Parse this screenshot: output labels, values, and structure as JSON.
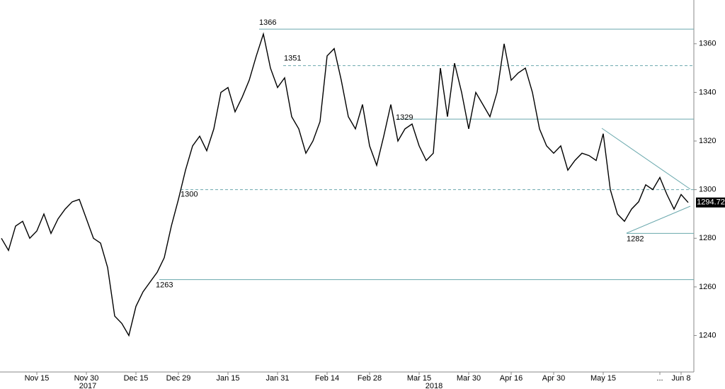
{
  "chart_data": {
    "type": "line",
    "categories": [
      null,
      null,
      null,
      null,
      null,
      "Nov 15",
      null,
      null,
      null,
      null,
      null,
      null,
      "Nov 30",
      null,
      null,
      null,
      null,
      null,
      null,
      "Dec 15",
      null,
      null,
      null,
      null,
      null,
      "Dec 29",
      null,
      null,
      null,
      null,
      null,
      null,
      "Jan 15",
      null,
      null,
      null,
      null,
      null,
      null,
      "Jan 31",
      null,
      null,
      null,
      null,
      null,
      null,
      "Feb 14",
      null,
      null,
      null,
      null,
      null,
      "Feb 28",
      null,
      null,
      null,
      null,
      null,
      null,
      "Mar 15",
      null,
      null,
      null,
      null,
      null,
      null,
      "Mar 30",
      null,
      null,
      null,
      null,
      null,
      "Apr 16",
      null,
      null,
      null,
      null,
      null,
      "Apr 30",
      null,
      null,
      null,
      null,
      null,
      null,
      "May 15",
      null,
      null,
      null,
      null,
      null,
      null,
      null,
      "...",
      null,
      null,
      "Jun 8",
      null
    ],
    "series": [
      {
        "color": "#000000",
        "values": [
          1280,
          1275,
          1285,
          1287,
          1280,
          1283,
          1290,
          1282,
          1288,
          1292,
          1295,
          1296,
          1288,
          1280,
          1278,
          1268,
          1248,
          1245,
          1240,
          1252,
          1258,
          1262,
          1266,
          1272,
          1285,
          1296,
          1308,
          1318,
          1322,
          1316,
          1325,
          1340,
          1342,
          1332,
          1338,
          1345,
          1355,
          1364,
          1350,
          1342,
          1346,
          1330,
          1325,
          1315,
          1320,
          1328,
          1355,
          1358,
          1345,
          1330,
          1325,
          1335,
          1318,
          1310,
          1322,
          1335,
          1320,
          1325,
          1327,
          1318,
          1312,
          1315,
          1350,
          1330,
          1352,
          1340,
          1325,
          1340,
          1335,
          1330,
          1340,
          1360,
          1345,
          1348,
          1350,
          1340,
          1325,
          1318,
          1315,
          1318,
          1308,
          1312,
          1315,
          1314,
          1312,
          1323,
          1300,
          1290,
          1287,
          1292,
          1295,
          1302,
          1300,
          1305,
          1298,
          1292,
          1298,
          1294.72
        ]
      }
    ],
    "ylim": [
      1225,
      1378
    ],
    "yticks": [
      1240,
      1260,
      1280,
      1300,
      1320,
      1340,
      1360
    ],
    "year_labels": [
      "2017",
      "2018"
    ],
    "reference_lines": [
      {
        "value": 1366,
        "dashed": false
      },
      {
        "value": 1351,
        "dashed": true
      },
      {
        "value": 1329,
        "dashed": false
      },
      {
        "value": 1300,
        "dashed": true
      },
      {
        "value": 1263,
        "dashed": false
      },
      {
        "value": 1282,
        "dashed": false
      }
    ],
    "reference_color": "#6aa8ad"
  }
}
